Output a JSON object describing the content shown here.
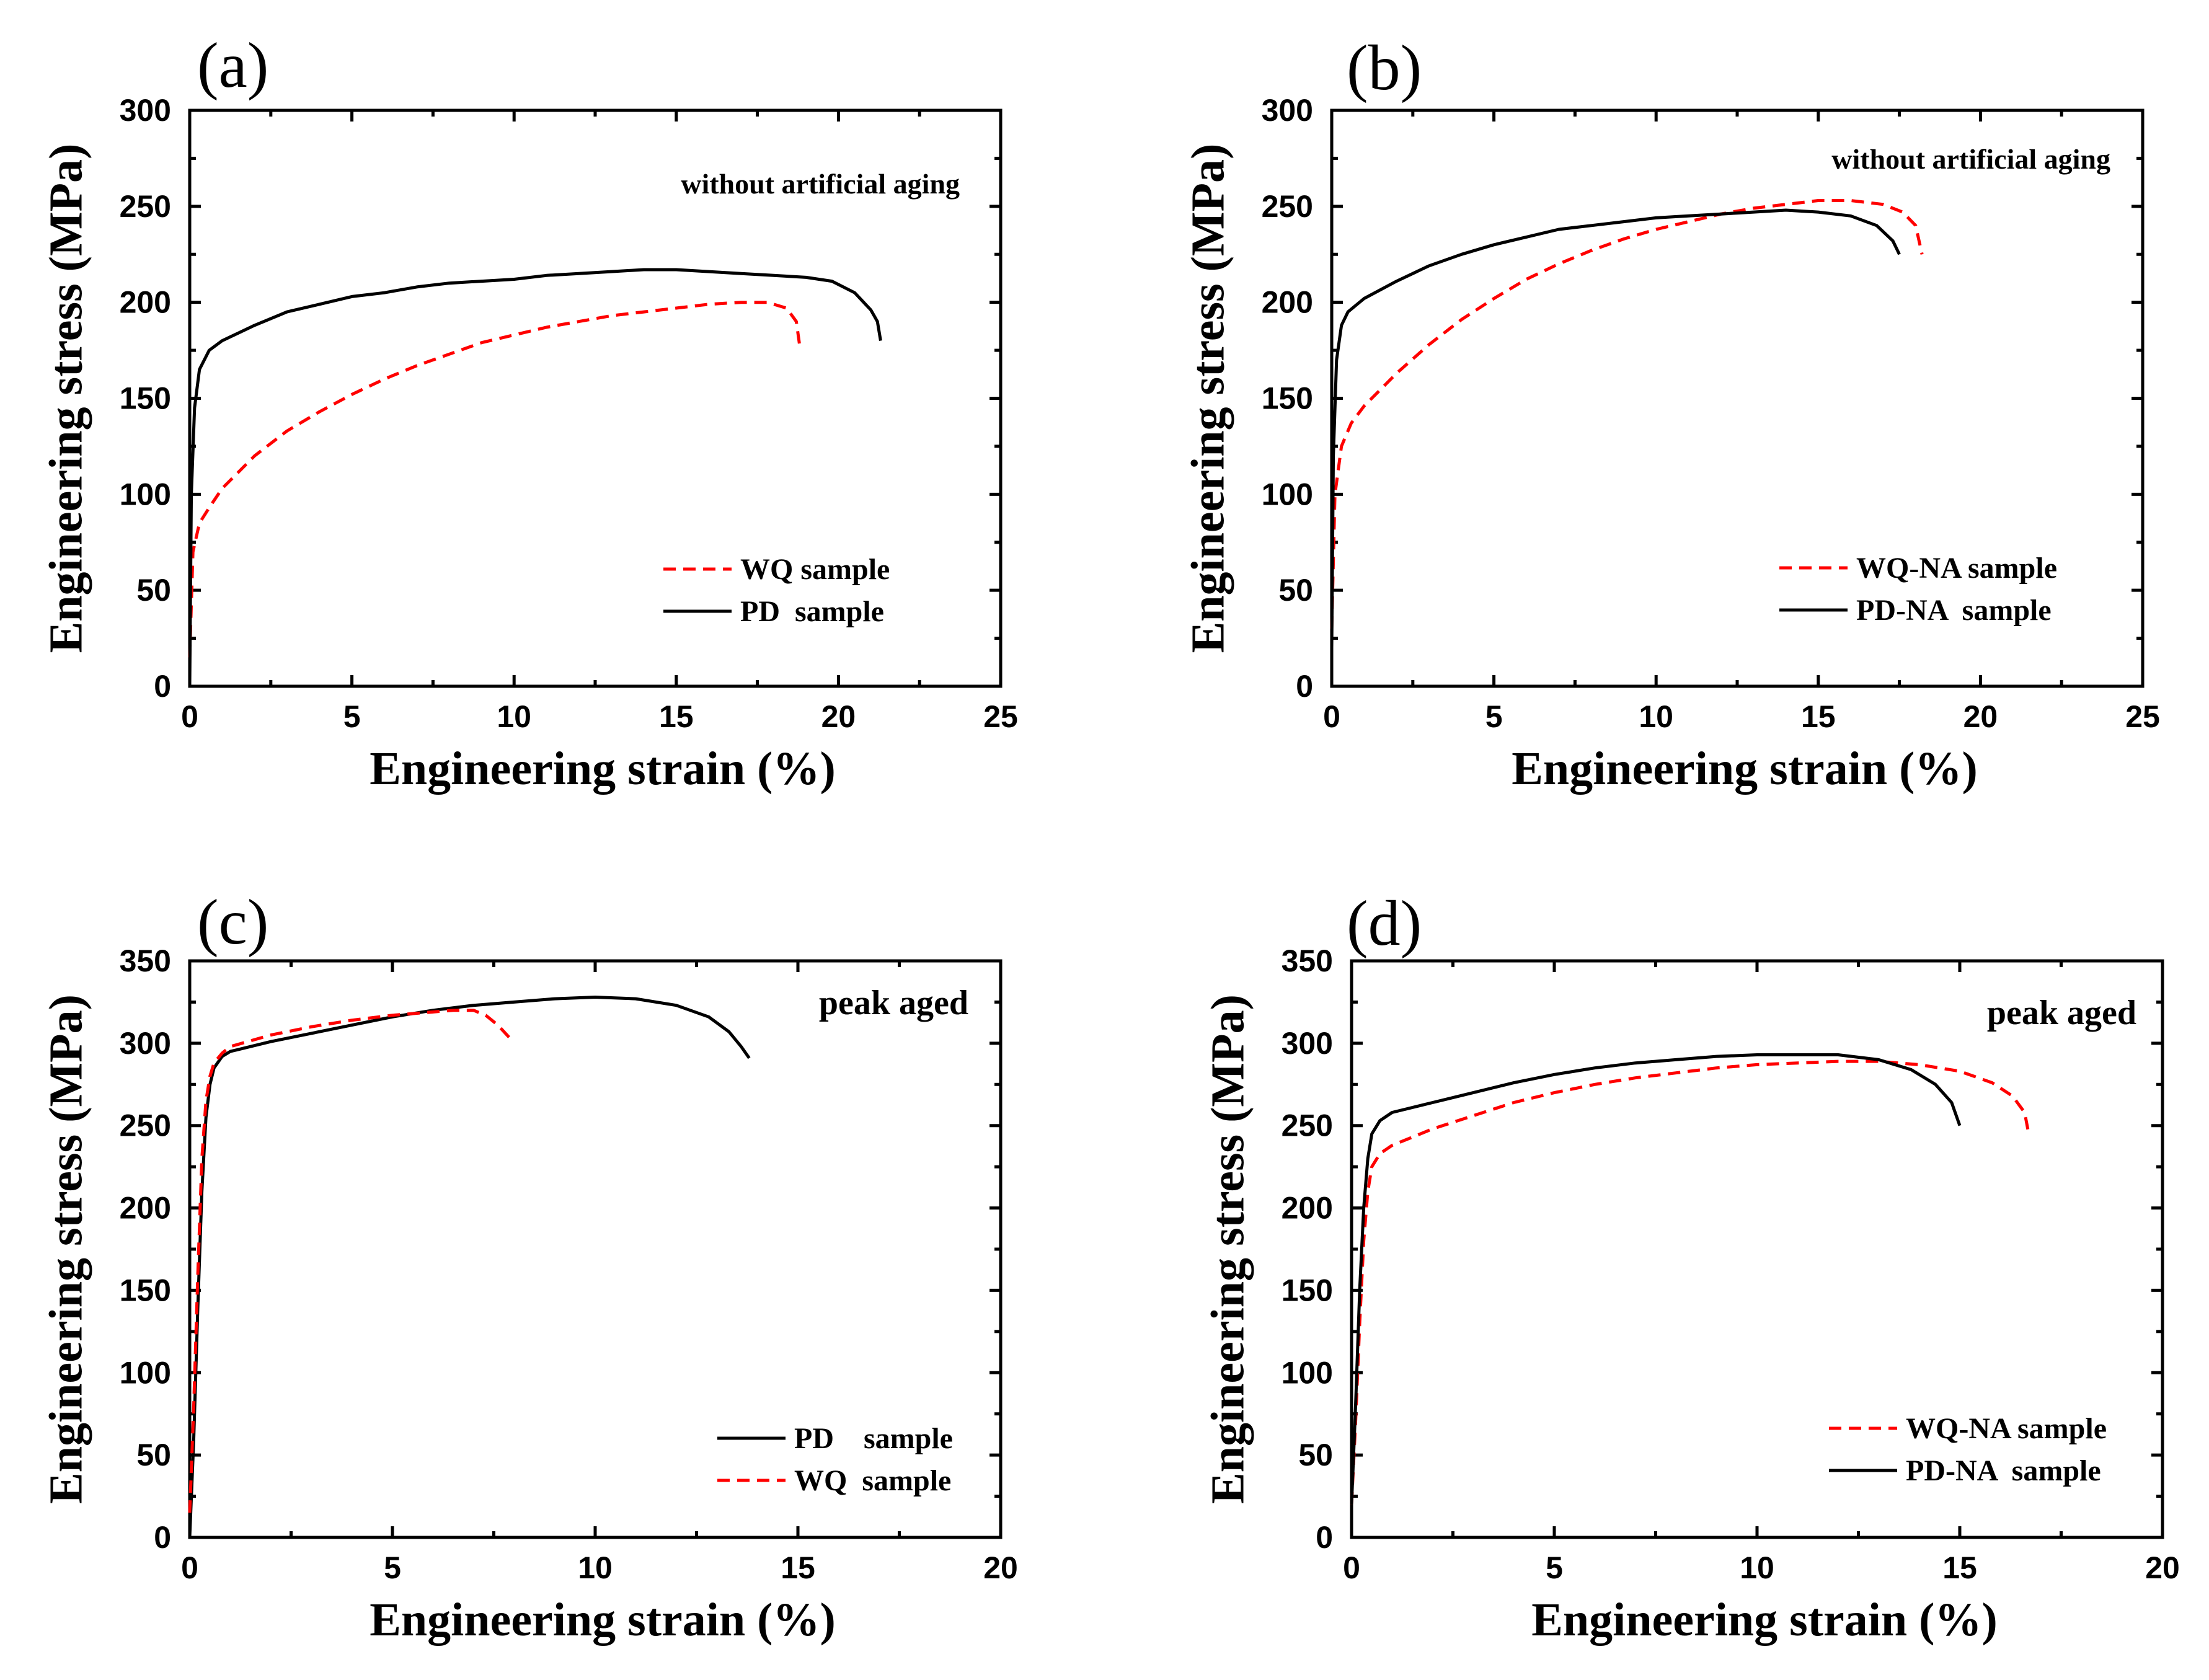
{
  "figure": {
    "colors": {
      "solid": "#000000",
      "dashed": "#ff0000",
      "axis": "#000000",
      "background": "#ffffff"
    }
  },
  "chart_data": [
    {
      "panel": "(a)",
      "type": "line",
      "title": "",
      "annotation": "without artificial aging",
      "xlabel": "Engineering strain (%)",
      "ylabel": "Engineering stress (MPa)",
      "xlim": [
        0,
        25
      ],
      "ylim": [
        0,
        300
      ],
      "xticks": [
        0,
        5,
        10,
        15,
        20,
        25
      ],
      "yticks": [
        0,
        50,
        100,
        150,
        200,
        250,
        300
      ],
      "legend_position": "bottom-right",
      "legend": [
        {
          "label": "WQ sample",
          "style": "dashed",
          "color": "#ff0000"
        },
        {
          "label": "PD  sample",
          "style": "solid",
          "color": "#000000"
        }
      ],
      "series": [
        {
          "name": "WQ sample",
          "style": "dashed",
          "color": "#ff0000",
          "x": [
            0,
            0.1,
            0.3,
            0.6,
            1.0,
            2.0,
            3.0,
            4.0,
            5.0,
            6.0,
            7.0,
            8.0,
            9.0,
            10.0,
            11.0,
            12.0,
            13.0,
            14.0,
            15.0,
            16.0,
            17.0,
            17.8,
            18.4,
            18.7,
            18.8
          ],
          "y": [
            15,
            70,
            85,
            93,
            103,
            120,
            133,
            143,
            152,
            160,
            167,
            173,
            179,
            183,
            187,
            190,
            193,
            195,
            197,
            199,
            200,
            200,
            197,
            190,
            178
          ]
        },
        {
          "name": "PD  sample",
          "style": "solid",
          "color": "#000000",
          "x": [
            0,
            0.05,
            0.15,
            0.3,
            0.6,
            1.0,
            2.0,
            3.0,
            4.0,
            5.0,
            6.0,
            7.0,
            8.0,
            9.0,
            10.0,
            11.0,
            12.0,
            13.0,
            14.0,
            15.0,
            16.0,
            17.0,
            18.0,
            19.0,
            19.8,
            20.5,
            21.0,
            21.2,
            21.3
          ],
          "y": [
            0,
            100,
            145,
            165,
            175,
            180,
            188,
            195,
            199,
            203,
            205,
            208,
            210,
            211,
            212,
            214,
            215,
            216,
            217,
            217,
            216,
            215,
            214,
            213,
            211,
            205,
            196,
            190,
            180
          ]
        }
      ]
    },
    {
      "panel": "(b)",
      "type": "line",
      "title": "",
      "annotation": "without artificial aging",
      "xlabel": "Engineering strain (%)",
      "ylabel": "Engineering stress (MPa)",
      "xlim": [
        0,
        25
      ],
      "ylim": [
        0,
        300
      ],
      "xticks": [
        0,
        5,
        10,
        15,
        20,
        25
      ],
      "yticks": [
        0,
        50,
        100,
        150,
        200,
        250,
        300
      ],
      "legend_position": "bottom-right",
      "legend": [
        {
          "label": "WQ-NA sample",
          "style": "dashed",
          "color": "#ff0000"
        },
        {
          "label": "PD-NA  sample",
          "style": "solid",
          "color": "#000000"
        }
      ],
      "series": [
        {
          "name": "WQ-NA sample",
          "style": "dashed",
          "color": "#ff0000",
          "x": [
            0,
            0.1,
            0.3,
            0.6,
            1.0,
            2.0,
            3.0,
            4.0,
            5.0,
            6.0,
            7.0,
            8.0,
            9.0,
            10.0,
            11.0,
            12.0,
            13.0,
            14.0,
            15.0,
            16.0,
            17.0,
            17.6,
            18.0,
            18.2
          ],
          "y": [
            30,
            100,
            125,
            137,
            146,
            163,
            178,
            191,
            202,
            212,
            220,
            227,
            233,
            238,
            242,
            246,
            249,
            251,
            253,
            253,
            251,
            247,
            240,
            225
          ]
        },
        {
          "name": "PD-NA  sample",
          "style": "solid",
          "color": "#000000",
          "x": [
            0,
            0.05,
            0.15,
            0.3,
            0.5,
            1.0,
            2.0,
            3.0,
            4.0,
            5.0,
            6.0,
            7.0,
            8.0,
            9.0,
            10.0,
            11.0,
            12.0,
            13.0,
            14.0,
            15.0,
            16.0,
            16.8,
            17.3,
            17.5
          ],
          "y": [
            20,
            120,
            170,
            188,
            195,
            202,
            211,
            219,
            225,
            230,
            234,
            238,
            240,
            242,
            244,
            245,
            246,
            247,
            248,
            247,
            245,
            240,
            232,
            225
          ]
        }
      ]
    },
    {
      "panel": "(c)",
      "type": "line",
      "title": "",
      "annotation": "peak aged",
      "xlabel": "Engineering strain (%)",
      "ylabel": "Engineering stress (MPa)",
      "xlim": [
        0,
        20
      ],
      "ylim": [
        0,
        350
      ],
      "xticks": [
        0,
        5,
        10,
        15,
        20
      ],
      "yticks": [
        0,
        50,
        100,
        150,
        200,
        250,
        300,
        350
      ],
      "legend_position": "bottom-right",
      "legend": [
        {
          "label": "PD    sample",
          "style": "solid",
          "color": "#000000"
        },
        {
          "label": "WQ  sample",
          "style": "dashed",
          "color": "#ff0000"
        }
      ],
      "series": [
        {
          "name": "PD    sample",
          "style": "solid",
          "color": "#000000",
          "x": [
            0,
            0.1,
            0.2,
            0.3,
            0.4,
            0.5,
            0.6,
            0.8,
            1.0,
            2.0,
            3.0,
            4.0,
            5.0,
            6.0,
            7.0,
            8.0,
            9.0,
            10.0,
            11.0,
            12.0,
            12.8,
            13.3,
            13.6,
            13.8
          ],
          "y": [
            0,
            60,
            140,
            210,
            255,
            275,
            285,
            292,
            295,
            301,
            306,
            311,
            316,
            320,
            323,
            325,
            327,
            328,
            327,
            323,
            316,
            307,
            298,
            291
          ]
        },
        {
          "name": "WQ  sample",
          "style": "dashed",
          "color": "#ff0000",
          "x": [
            0,
            0.1,
            0.2,
            0.3,
            0.4,
            0.5,
            0.6,
            0.8,
            1.0,
            2.0,
            3.0,
            4.0,
            5.0,
            6.0,
            6.5,
            7.0,
            7.3,
            7.6,
            7.9
          ],
          "y": [
            15,
            80,
            160,
            230,
            265,
            280,
            288,
            294,
            298,
            305,
            310,
            314,
            317,
            319,
            320,
            320,
            317,
            311,
            303
          ]
        }
      ]
    },
    {
      "panel": "(d)",
      "type": "line",
      "title": "",
      "annotation": "peak aged",
      "xlabel": "Engineering strain (%)",
      "ylabel": "Engineering stress (MPa)",
      "xlim": [
        0,
        20
      ],
      "ylim": [
        0,
        350
      ],
      "xticks": [
        0,
        5,
        10,
        15,
        20
      ],
      "yticks": [
        0,
        50,
        100,
        150,
        200,
        250,
        300,
        350
      ],
      "legend_position": "bottom-right",
      "legend": [
        {
          "label": "WQ-NA sample",
          "style": "dashed",
          "color": "#ff0000"
        },
        {
          "label": "PD-NA  sample",
          "style": "solid",
          "color": "#000000"
        }
      ],
      "series": [
        {
          "name": "WQ-NA sample",
          "style": "dashed",
          "color": "#ff0000",
          "x": [
            0,
            0.1,
            0.2,
            0.3,
            0.4,
            0.5,
            0.7,
            1.0,
            2.0,
            3.0,
            4.0,
            5.0,
            6.0,
            7.0,
            8.0,
            9.0,
            10.0,
            11.0,
            12.0,
            13.0,
            14.0,
            15.0,
            15.8,
            16.3,
            16.6,
            16.7
          ],
          "y": [
            20,
            70,
            130,
            180,
            210,
            225,
            233,
            238,
            248,
            256,
            264,
            270,
            275,
            279,
            282,
            285,
            287,
            288,
            289,
            289,
            287,
            283,
            276,
            268,
            258,
            245
          ]
        },
        {
          "name": "PD-NA  sample",
          "style": "solid",
          "color": "#000000",
          "x": [
            0,
            0.1,
            0.2,
            0.3,
            0.4,
            0.5,
            0.7,
            1.0,
            2.0,
            3.0,
            4.0,
            5.0,
            6.0,
            7.0,
            8.0,
            9.0,
            10.0,
            11.0,
            12.0,
            13.0,
            13.8,
            14.4,
            14.8,
            15.0
          ],
          "y": [
            20,
            80,
            150,
            200,
            230,
            245,
            253,
            258,
            264,
            270,
            276,
            281,
            285,
            288,
            290,
            292,
            293,
            293,
            293,
            290,
            284,
            275,
            264,
            250
          ]
        }
      ]
    }
  ]
}
